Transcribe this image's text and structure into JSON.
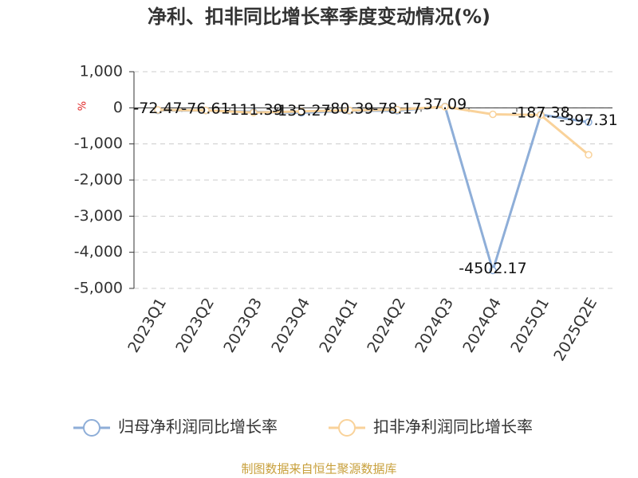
{
  "chart_data": {
    "type": "line",
    "title": "净利、扣非同比增长率季度变动情况(%)",
    "unit": "%",
    "categories": [
      "2023Q1",
      "2023Q2",
      "2023Q3",
      "2023Q4",
      "2024Q1",
      "2024Q2",
      "2024Q3",
      "2024Q4",
      "2025Q1",
      "2025Q2E"
    ],
    "series": [
      {
        "name": "归母净利润同比增长率",
        "color": "#8eaed8",
        "values": [
          -72.47,
          -76.61,
          -111.39,
          -135.27,
          -80.39,
          -78.17,
          37.09,
          -4502.17,
          -187.38,
          -397.31
        ]
      },
      {
        "name": "扣非净利润同比增长率",
        "color": "#f9d29a",
        "values": [
          -60,
          -70,
          -130,
          -100,
          -70,
          -50,
          30,
          -180,
          -200,
          -1300
        ]
      }
    ],
    "ylim": [
      -5000,
      1000
    ],
    "yticks": [
      {
        "value": 1000,
        "label": "1,000"
      },
      0,
      {
        "value": -1000,
        "label": "-1,000"
      },
      {
        "value": -2000,
        "label": "-2,000"
      },
      {
        "value": -3000,
        "label": "-3,000"
      },
      {
        "value": -4000,
        "label": "-4,000"
      },
      {
        "value": -5000,
        "label": "-5,000"
      }
    ],
    "grid": true,
    "source": "制图数据来自恒生聚源数据库"
  }
}
